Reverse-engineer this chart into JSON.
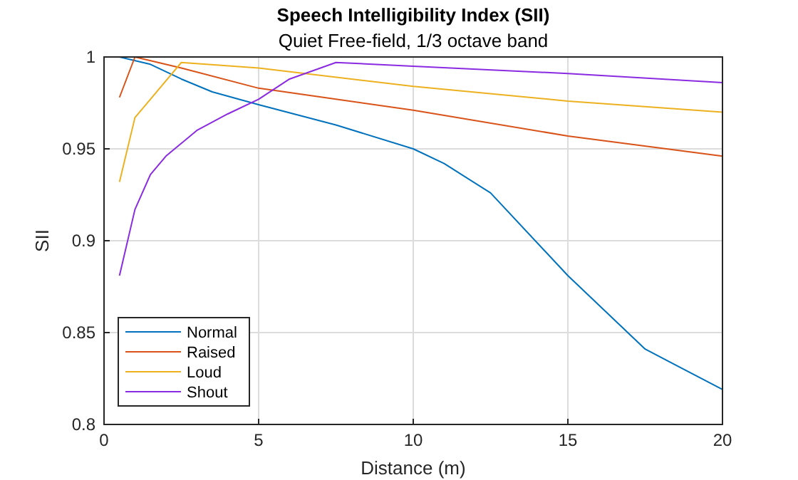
{
  "chart_data": {
    "type": "line",
    "title": "Speech Intelligibility Index (SII)",
    "subtitle": "Quiet Free-field, 1/3 octave band",
    "xlabel": "Distance (m)",
    "ylabel": "SII",
    "xlim": [
      0,
      20
    ],
    "xticks": [
      0,
      5,
      10,
      15,
      20
    ],
    "ylim": [
      0.8,
      1
    ],
    "yticks": [
      0.8,
      0.85,
      0.9,
      0.95,
      1
    ],
    "grid": true,
    "legend": "bottom left",
    "line_style": "solid",
    "marker": "none",
    "series": [
      {
        "name": "Normal",
        "color": "#0072bd",
        "x": [
          0.5,
          1.5,
          2.5,
          3.5,
          5,
          7.5,
          10,
          11,
          12.5,
          15,
          17.5,
          20
        ],
        "values": [
          1.0,
          0.996,
          0.988,
          0.981,
          0.974,
          0.963,
          0.95,
          0.942,
          0.926,
          0.881,
          0.841,
          0.819
        ]
      },
      {
        "name": "Raised",
        "color": "#d95319",
        "x": [
          0.5,
          1,
          2.5,
          5,
          7.5,
          10,
          15,
          20
        ],
        "values": [
          0.978,
          1.0,
          0.994,
          0.983,
          0.977,
          0.971,
          0.957,
          0.946
        ]
      },
      {
        "name": "Loud",
        "color": "#edb120",
        "x": [
          0.5,
          1,
          1.5,
          2.5,
          5,
          10,
          15,
          20
        ],
        "values": [
          0.932,
          0.967,
          0.977,
          0.997,
          0.994,
          0.984,
          0.976,
          0.97
        ]
      },
      {
        "name": "Shout",
        "color": "#8a2be2",
        "x": [
          0.5,
          1,
          1.5,
          2,
          2.5,
          3,
          4,
          5,
          6,
          7.5,
          10,
          15,
          20
        ],
        "values": [
          0.881,
          0.917,
          0.936,
          0.946,
          0.953,
          0.96,
          0.969,
          0.977,
          0.988,
          0.997,
          0.995,
          0.991,
          0.986
        ]
      }
    ]
  }
}
